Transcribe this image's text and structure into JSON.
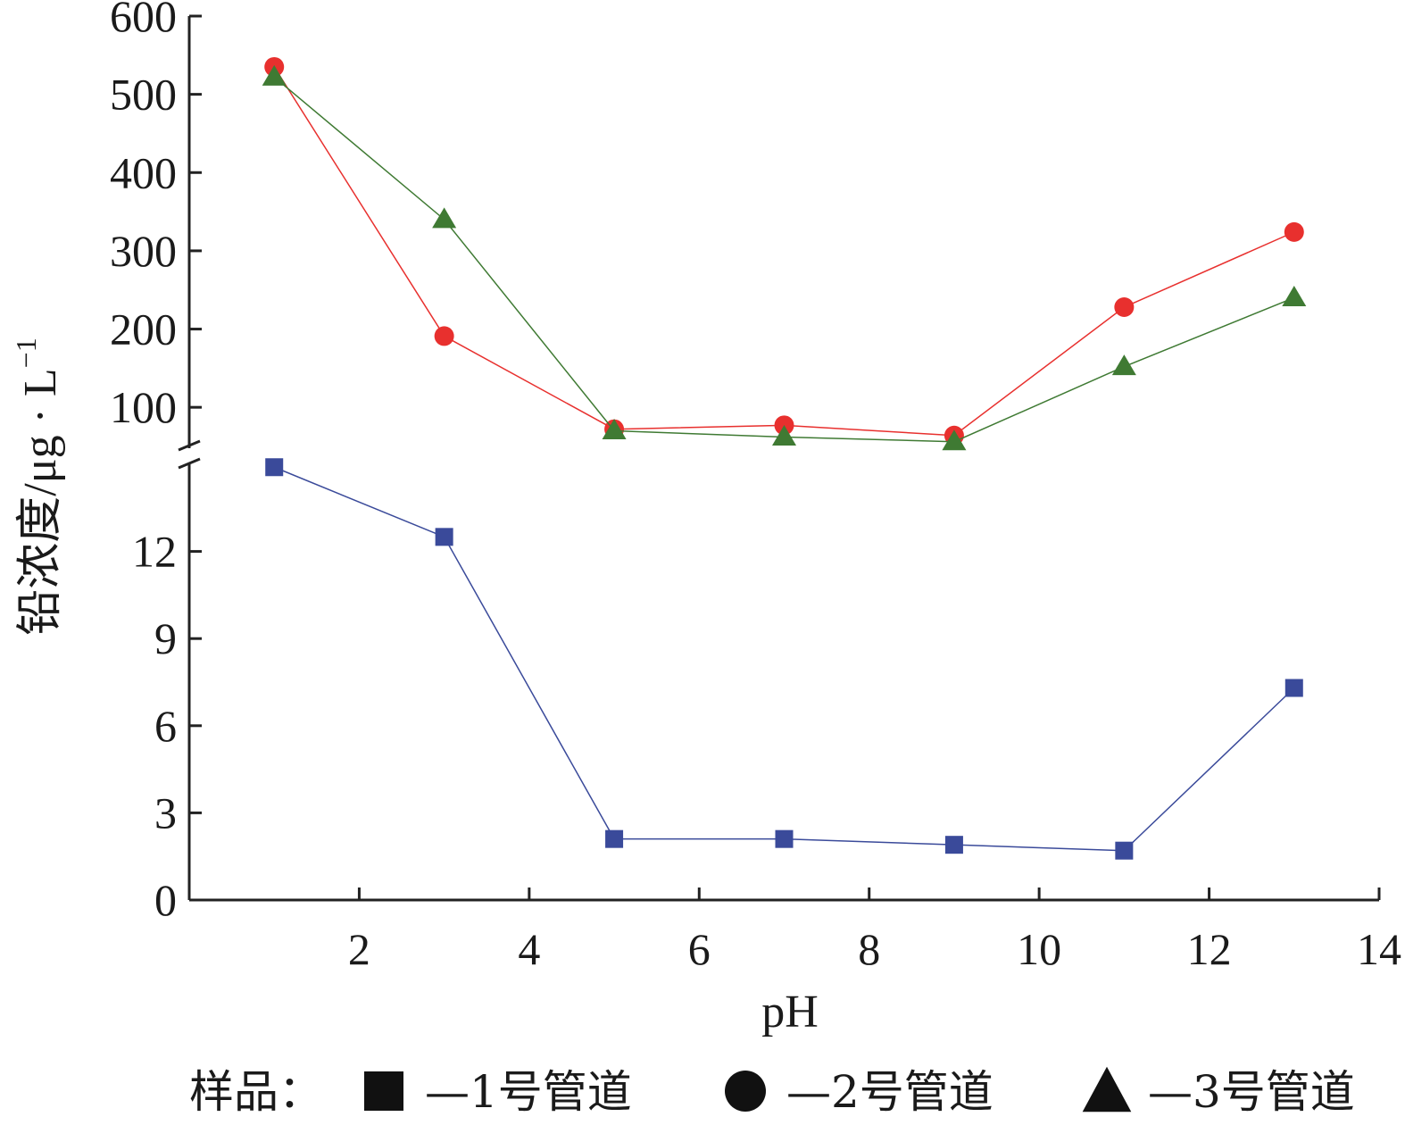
{
  "chart_data": {
    "type": "line",
    "xlabel": "pH",
    "ylabel": "铅浓度/μg · L",
    "ylabel_superscript": "−1",
    "x_ticks": [
      2,
      4,
      6,
      8,
      10,
      12,
      14
    ],
    "x_tick_labels": [
      "2",
      "4",
      "6",
      "8",
      "10",
      "12",
      "14"
    ],
    "xlim": [
      0,
      14
    ],
    "broken_y_axis": true,
    "y_upper_ticks": [
      100,
      200,
      300,
      400,
      500,
      600
    ],
    "y_upper_tick_labels": [
      "100",
      "200",
      "300",
      "400",
      "500",
      "600"
    ],
    "y_upper_range": [
      50,
      600
    ],
    "y_lower_ticks": [
      0,
      3,
      6,
      9,
      12
    ],
    "y_lower_tick_labels": [
      "0",
      "3",
      "6",
      "9",
      "12"
    ],
    "y_lower_range": [
      0,
      15
    ],
    "x": [
      1,
      3,
      5,
      7,
      9,
      11,
      13
    ],
    "series": [
      {
        "name": "1号管道",
        "marker": "square",
        "color": "#3a4a9a",
        "segment": "lower",
        "values": [
          14.9,
          12.5,
          2.1,
          2.1,
          1.9,
          1.7,
          7.3
        ]
      },
      {
        "name": "2号管道",
        "marker": "circle",
        "color": "#e8302e",
        "segment": "upper",
        "values": [
          535,
          191,
          72,
          77,
          64,
          228,
          324
        ]
      },
      {
        "name": "3号管道",
        "marker": "triangle",
        "color": "#3f7a33",
        "segment": "upper",
        "values": [
          522,
          340,
          70,
          62,
          56,
          152,
          240
        ]
      }
    ],
    "legend": {
      "prefix": "样品：",
      "placement": "bottom",
      "items": [
        "—1号管道",
        "—2号管道",
        "—3号管道"
      ]
    },
    "grid": false
  }
}
